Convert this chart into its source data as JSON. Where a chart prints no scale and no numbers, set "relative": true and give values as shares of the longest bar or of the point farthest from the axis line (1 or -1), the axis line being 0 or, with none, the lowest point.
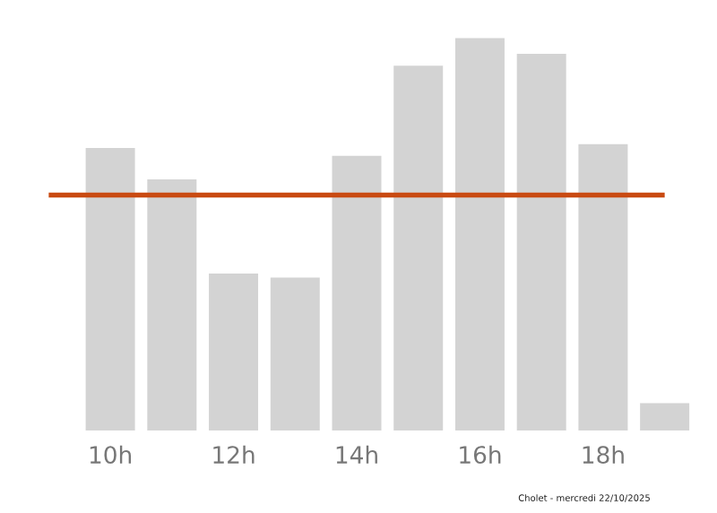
{
  "chart_data": {
    "type": "bar",
    "relative": true,
    "categories": [
      null,
      "10h",
      null,
      "12h",
      null,
      "14h",
      null,
      "16h",
      null,
      "18h",
      null
    ],
    "values": [
      0,
      0.72,
      0.64,
      0.4,
      0.39,
      0.7,
      0.93,
      1,
      0.96,
      0.73,
      0.07
    ],
    "color": "#d3d3d3",
    "ref_lines": [
      {
        "axis": "y",
        "value": 0.6,
        "color": "#c94a12"
      }
    ],
    "annotations": [
      "Cholet - mercredi 22/10/2025"
    ],
    "grid": false
  }
}
